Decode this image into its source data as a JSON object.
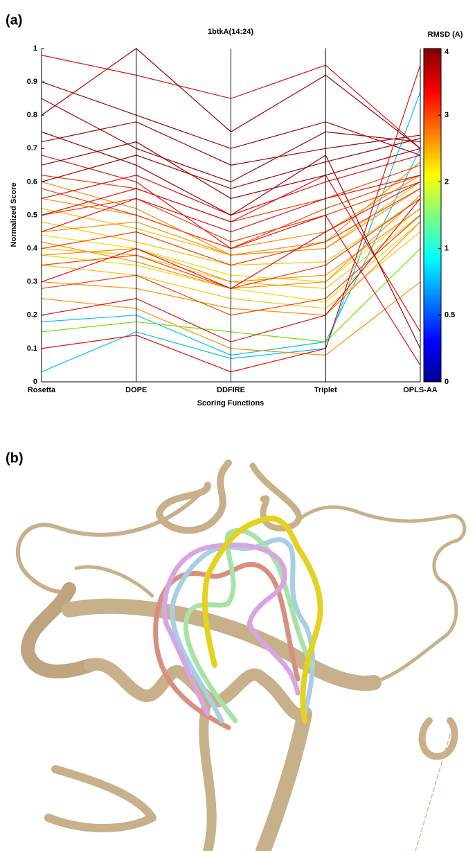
{
  "panel_labels": [
    "(a)",
    "(b)"
  ],
  "chart_data": {
    "type": "parallel",
    "title": "1btkA(14:24)",
    "x_label": "Scoring Functions",
    "y_label": "Normalized Score",
    "categories": [
      "Rosetta",
      "DOPE",
      "DDFIRE",
      "Triplet",
      "OPLS-AA"
    ],
    "ylim": [
      0,
      1
    ],
    "yticks": [
      0,
      0.1,
      0.2,
      0.3,
      0.4,
      0.5,
      0.6,
      0.7,
      0.8,
      0.9,
      1
    ],
    "colorbar": {
      "label": "RMSD (A)",
      "ticks": [
        0,
        0.5,
        1,
        2,
        3,
        4
      ]
    },
    "series": [
      {
        "color": "#00c0f0",
        "values": [
          0.18,
          0.2,
          0.08,
          0.12,
          0.7
        ]
      },
      {
        "color": "#00c0f0",
        "values": [
          0.03,
          0.15,
          0.07,
          0.1,
          0.87
        ]
      },
      {
        "color": "#70e000",
        "values": [
          0.15,
          0.18,
          0.15,
          0.12,
          0.4
        ]
      },
      {
        "color": "#e8e000",
        "values": [
          0.44,
          0.4,
          0.32,
          0.3,
          0.52
        ]
      },
      {
        "color": "#e8e000",
        "values": [
          0.38,
          0.35,
          0.28,
          0.24,
          0.48
        ]
      },
      {
        "color": "#ffc000",
        "values": [
          0.48,
          0.42,
          0.35,
          0.36,
          0.55
        ]
      },
      {
        "color": "#ffc000",
        "values": [
          0.4,
          0.38,
          0.3,
          0.28,
          0.5
        ]
      },
      {
        "color": "#ffc000",
        "values": [
          0.52,
          0.46,
          0.38,
          0.4,
          0.6
        ]
      },
      {
        "color": "#ffc000",
        "values": [
          0.35,
          0.32,
          0.25,
          0.22,
          0.45
        ]
      },
      {
        "color": "#ff8c00",
        "values": [
          0.45,
          0.48,
          0.38,
          0.4,
          0.58
        ]
      },
      {
        "color": "#ff8c00",
        "values": [
          0.38,
          0.4,
          0.3,
          0.32,
          0.52
        ]
      },
      {
        "color": "#ff8c00",
        "values": [
          0.55,
          0.5,
          0.4,
          0.45,
          0.62
        ]
      },
      {
        "color": "#ff8c00",
        "values": [
          0.42,
          0.36,
          0.28,
          0.3,
          0.56
        ]
      },
      {
        "color": "#ff8c00",
        "values": [
          0.3,
          0.28,
          0.22,
          0.2,
          0.48
        ]
      },
      {
        "color": "#ff8c00",
        "values": [
          0.6,
          0.52,
          0.38,
          0.42,
          0.66
        ]
      },
      {
        "color": "#ff8c00",
        "values": [
          0.25,
          0.22,
          0.1,
          0.08,
          0.3
        ]
      },
      {
        "color": "#f04000",
        "values": [
          0.5,
          0.55,
          0.42,
          0.5,
          0.6
        ]
      },
      {
        "color": "#f04000",
        "values": [
          0.4,
          0.45,
          0.35,
          0.42,
          0.58
        ]
      },
      {
        "color": "#f04000",
        "values": [
          0.62,
          0.58,
          0.48,
          0.55,
          0.65
        ]
      },
      {
        "color": "#f04000",
        "values": [
          0.35,
          0.38,
          0.28,
          0.35,
          0.55
        ]
      },
      {
        "color": "#f04000",
        "values": [
          0.28,
          0.32,
          0.2,
          0.25,
          0.5
        ]
      },
      {
        "color": "#f04000",
        "values": [
          0.58,
          0.5,
          0.4,
          0.52,
          0.62
        ]
      },
      {
        "color": "#e01010",
        "values": [
          0.55,
          0.62,
          0.5,
          0.6,
          0.68
        ]
      },
      {
        "color": "#e01010",
        "values": [
          0.45,
          0.55,
          0.45,
          0.55,
          0.62
        ]
      },
      {
        "color": "#e01010",
        "values": [
          0.98,
          0.92,
          0.85,
          0.95,
          0.7
        ]
      },
      {
        "color": "#e01010",
        "values": [
          0.3,
          0.4,
          0.28,
          0.45,
          0.6
        ]
      },
      {
        "color": "#e01010",
        "values": [
          0.2,
          0.25,
          0.12,
          0.2,
          0.55
        ]
      },
      {
        "color": "#e01010",
        "values": [
          0.5,
          0.58,
          0.48,
          0.62,
          0.15
        ]
      },
      {
        "color": "#e01010",
        "values": [
          0.68,
          0.6,
          0.4,
          0.5,
          0.05
        ]
      },
      {
        "color": "#e01010",
        "values": [
          0.1,
          0.14,
          0.03,
          0.1,
          0.95
        ]
      },
      {
        "color": "#a00000",
        "values": [
          0.72,
          0.78,
          0.65,
          0.7,
          0.74
        ]
      },
      {
        "color": "#a00000",
        "values": [
          0.85,
          0.7,
          0.6,
          0.75,
          0.72
        ]
      },
      {
        "color": "#a00000",
        "values": [
          0.65,
          0.72,
          0.55,
          0.62,
          0.7
        ]
      },
      {
        "color": "#a00000",
        "values": [
          0.8,
          1,
          0.75,
          0.92,
          0.7
        ]
      },
      {
        "color": "#a00000",
        "values": [
          0.6,
          0.68,
          0.58,
          0.66,
          0.73
        ]
      },
      {
        "color": "#a00000",
        "values": [
          0.75,
          0.65,
          0.5,
          0.68,
          0.1
        ]
      },
      {
        "color": "#a00000",
        "values": [
          0.9,
          0.8,
          0.7,
          0.78,
          0.68
        ]
      }
    ]
  }
}
